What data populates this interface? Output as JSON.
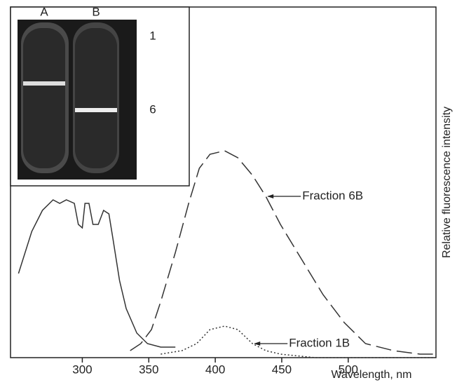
{
  "chart_data": {
    "type": "line",
    "x_label": "Wavelength, nm",
    "y_label": "Relative fluorescence intensity",
    "xlim": [
      246,
      566
    ],
    "ylim": [
      0,
      100
    ],
    "xticks": [
      300,
      350,
      400,
      450,
      500
    ],
    "series": [
      {
        "color": "#333",
        "dash": "solid",
        "x": [
          252,
          262,
          270,
          278,
          283,
          288,
          294,
          297,
          300,
          302,
          305,
          308,
          312,
          316,
          320,
          323,
          328,
          333,
          341,
          349,
          359,
          370
        ],
        "values": [
          24,
          36,
          42,
          45,
          44,
          45,
          44,
          38,
          37,
          44,
          44,
          38,
          38,
          42,
          41,
          34,
          22,
          14,
          7,
          4,
          3,
          3
        ]
      },
      {
        "name": "Fraction 6B",
        "color": "#333",
        "dash": "dashed",
        "x": [
          336,
          344,
          352,
          359,
          370,
          380,
          388,
          396,
          407,
          417,
          428,
          438,
          449,
          465,
          481,
          497,
          513,
          534,
          554,
          564
        ],
        "values": [
          2,
          4,
          8,
          16,
          30,
          44,
          54,
          58,
          59,
          57,
          52,
          46,
          38,
          28,
          18,
          10,
          4,
          2,
          1,
          1
        ]
      },
      {
        "name": "Fraction 1B",
        "color": "#333",
        "dash": "dotted",
        "x": [
          359,
          375,
          386,
          396,
          407,
          417,
          428,
          438,
          449,
          475,
          564
        ],
        "values": [
          1,
          2,
          4,
          8,
          9,
          8,
          4,
          2,
          1,
          0,
          0
        ]
      }
    ],
    "inset_lanes": [
      "A",
      "B"
    ],
    "inset_fractions": [
      "1",
      "6"
    ]
  }
}
